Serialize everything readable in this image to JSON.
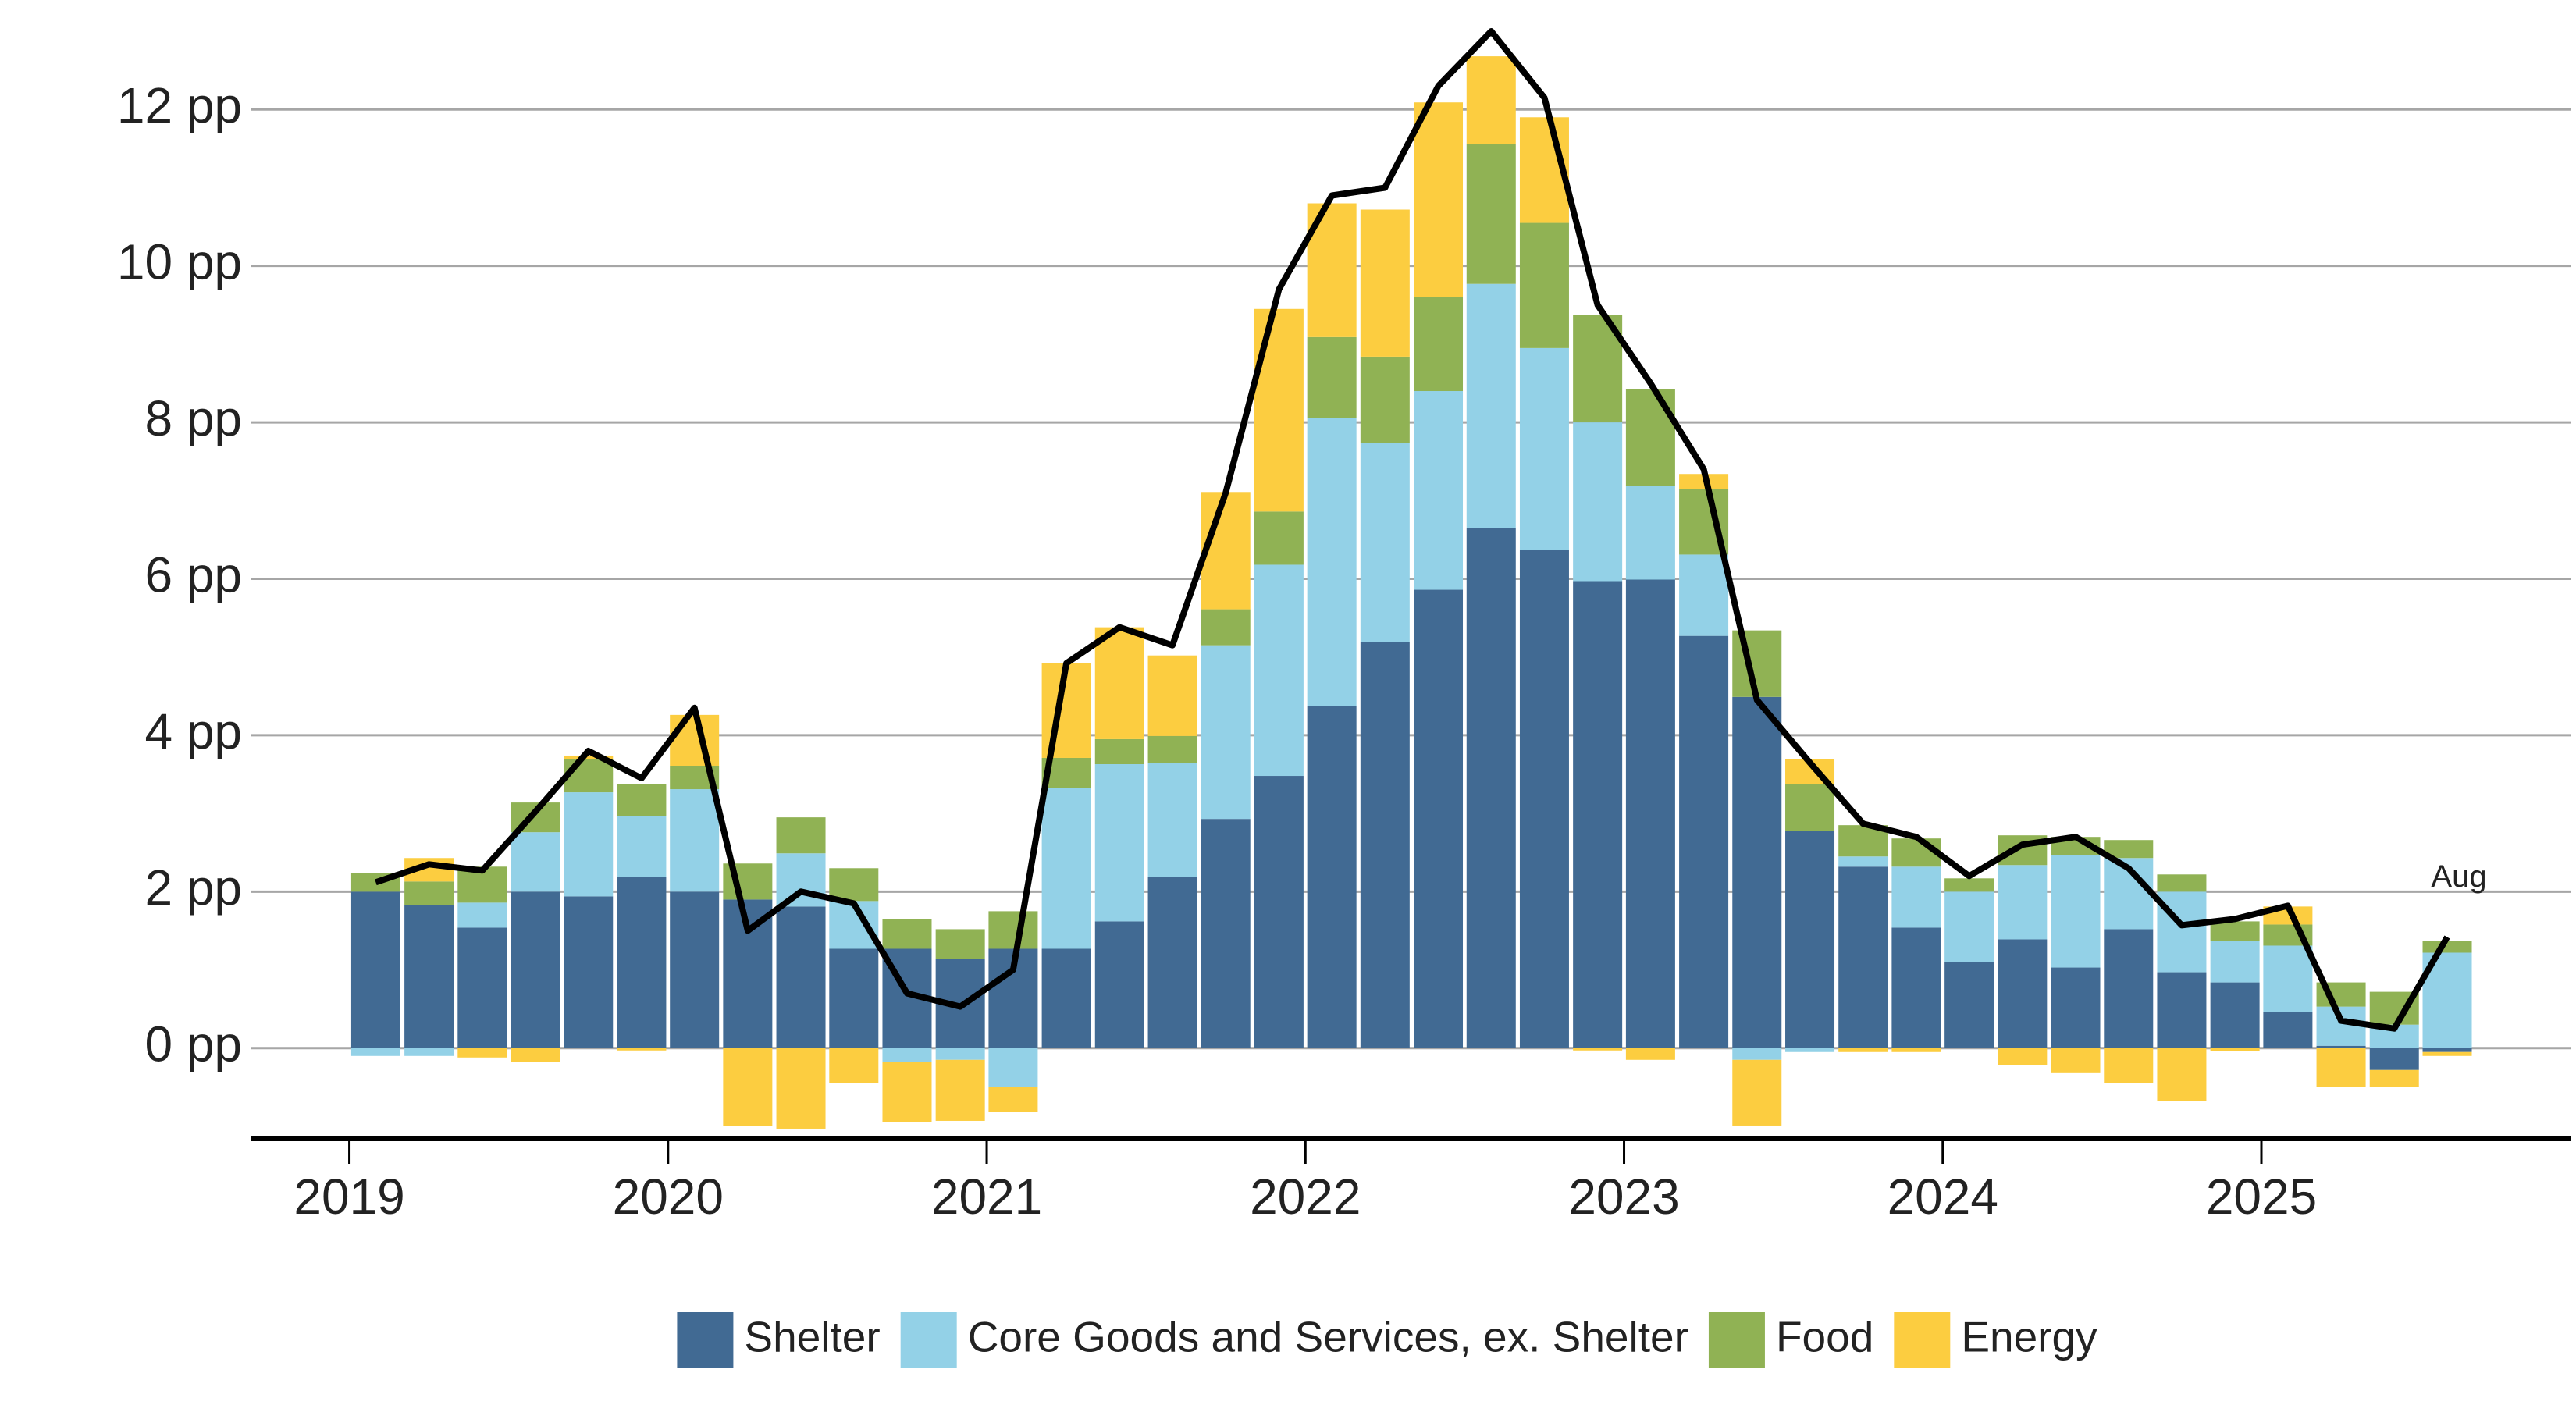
{
  "chart_data": {
    "type": "stacked-bar-line",
    "x": [
      2019.083,
      2019.25,
      2019.417,
      2019.583,
      2019.75,
      2019.917,
      2020.083,
      2020.25,
      2020.417,
      2020.583,
      2020.75,
      2020.917,
      2021.083,
      2021.25,
      2021.417,
      2021.583,
      2021.75,
      2021.917,
      2022.083,
      2022.25,
      2022.417,
      2022.583,
      2022.75,
      2022.917,
      2023.083,
      2023.25,
      2023.417,
      2023.583,
      2023.75,
      2023.917,
      2024.083,
      2024.25,
      2024.417,
      2024.583,
      2024.75,
      2024.917,
      2025.083,
      2025.25,
      2025.417,
      2025.583
    ],
    "series": [
      {
        "name": "Shelter",
        "color": "#416a93",
        "values": [
          2.0,
          1.83,
          1.54,
          2.0,
          1.94,
          2.19,
          2.0,
          1.9,
          1.81,
          1.27,
          1.27,
          1.14,
          1.27,
          1.27,
          1.62,
          2.19,
          2.93,
          3.48,
          4.37,
          5.19,
          5.86,
          6.65,
          6.37,
          5.97,
          5.99,
          5.27,
          4.49,
          2.78,
          2.32,
          1.54,
          1.1,
          1.39,
          1.03,
          1.52,
          0.97,
          0.84,
          0.46,
          0.03,
          -0.28,
          -0.05
        ]
      },
      {
        "name": "Core Goods and Services, ex. Shelter",
        "color": "#93d1e7",
        "values": [
          -0.1,
          -0.1,
          0.32,
          0.76,
          1.33,
          0.78,
          1.31,
          0.0,
          0.68,
          0.61,
          -0.18,
          -0.15,
          -0.5,
          2.06,
          2.01,
          1.46,
          2.22,
          2.7,
          3.69,
          2.55,
          2.54,
          3.12,
          2.58,
          2.03,
          1.2,
          1.04,
          -0.15,
          -0.05,
          0.13,
          0.78,
          0.9,
          0.95,
          1.44,
          0.91,
          1.03,
          0.53,
          0.85,
          0.5,
          0.3,
          1.22
        ]
      },
      {
        "name": "Food",
        "color": "#90b254",
        "values": [
          0.24,
          0.3,
          0.46,
          0.38,
          0.42,
          0.41,
          0.3,
          0.46,
          0.46,
          0.42,
          0.38,
          0.38,
          0.48,
          0.38,
          0.32,
          0.34,
          0.46,
          0.68,
          1.03,
          1.1,
          1.2,
          1.79,
          1.6,
          1.37,
          1.23,
          0.84,
          0.85,
          0.6,
          0.4,
          0.36,
          0.17,
          0.38,
          0.23,
          0.23,
          0.22,
          0.25,
          0.27,
          0.31,
          0.42,
          0.15
        ]
      },
      {
        "name": "Energy",
        "color": "#fccd40",
        "values": [
          0.0,
          0.3,
          -0.12,
          -0.18,
          0.05,
          -0.03,
          0.65,
          -1.0,
          -1.03,
          -0.45,
          -0.77,
          -0.78,
          -0.32,
          1.21,
          1.43,
          1.03,
          1.5,
          2.59,
          1.71,
          1.88,
          2.49,
          1.12,
          1.35,
          -0.03,
          -0.15,
          0.19,
          -0.84,
          0.31,
          -0.05,
          -0.05,
          0.0,
          -0.22,
          -0.32,
          -0.45,
          -0.68,
          -0.04,
          0.23,
          -0.5,
          -0.22,
          -0.05
        ]
      }
    ],
    "line": {
      "color": "#000000",
      "values": [
        2.12,
        2.35,
        2.27,
        3.02,
        3.8,
        3.45,
        4.35,
        1.5,
        2.0,
        1.85,
        0.7,
        0.53,
        1.0,
        4.92,
        5.38,
        5.15,
        7.1,
        9.7,
        10.9,
        11.0,
        12.3,
        13.0,
        12.15,
        9.5,
        8.5,
        7.4,
        4.45,
        3.65,
        2.87,
        2.7,
        2.2,
        2.6,
        2.7,
        2.3,
        1.57,
        1.65,
        1.82,
        0.35,
        0.25,
        1.42
      ]
    },
    "annotation": "Aug",
    "xlim": [
      2018.69,
      2025.97
    ],
    "xticks": [
      2019,
      2020,
      2021,
      2022,
      2023,
      2024,
      2025
    ],
    "ylim": [
      -1.16,
      13.2
    ],
    "yticks": [
      {
        "value": 0,
        "label": "0 pp"
      },
      {
        "value": 2,
        "label": "2 pp"
      },
      {
        "value": 4,
        "label": "4 pp"
      },
      {
        "value": 6,
        "label": "6 pp"
      },
      {
        "value": 8,
        "label": "8 pp"
      },
      {
        "value": 10,
        "label": "10 pp"
      },
      {
        "value": 12,
        "label": "12 pp"
      }
    ],
    "grid": true,
    "legend": "bottom"
  }
}
